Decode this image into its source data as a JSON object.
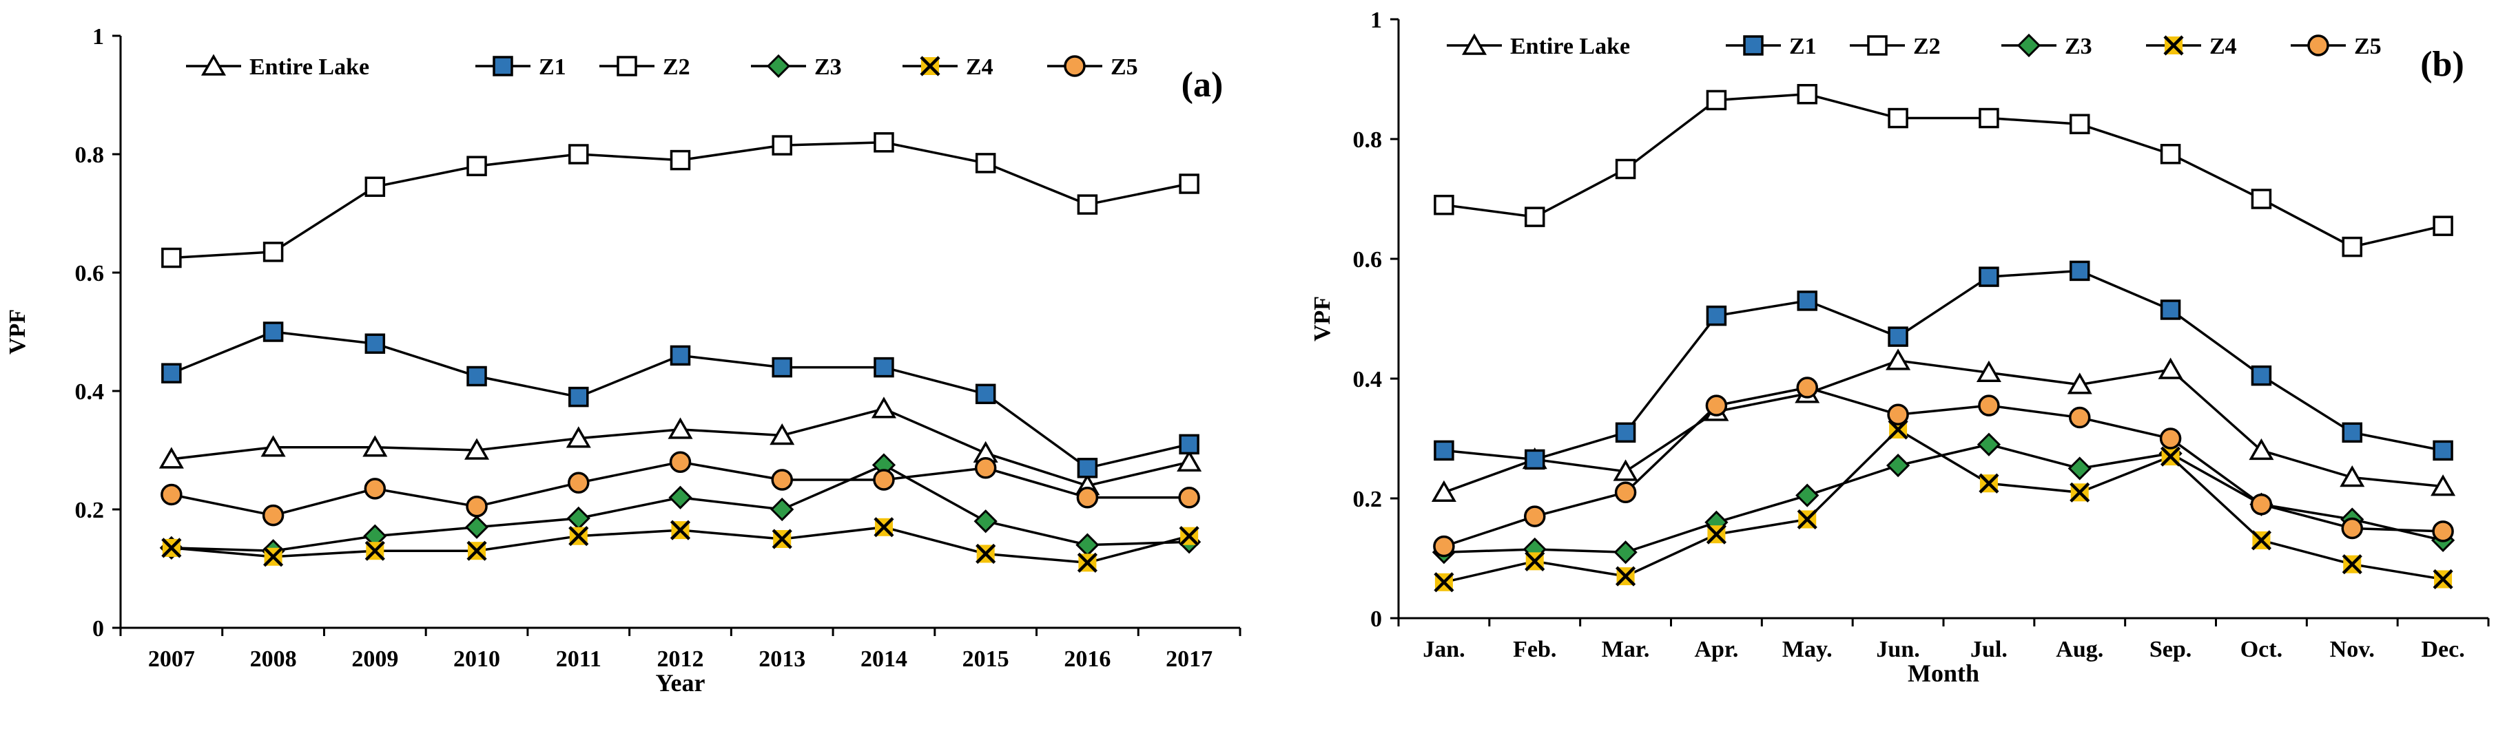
{
  "chart_data": [
    {
      "type": "line",
      "panel_label": "(a)",
      "xlabel": "Year",
      "ylabel": "VPF",
      "ylim": [
        0,
        1
      ],
      "yticks": [
        "0",
        "0.2",
        "0.4",
        "0.6",
        "0.8",
        "1"
      ],
      "categories": [
        "2007",
        "2008",
        "2009",
        "2010",
        "2011",
        "2012",
        "2013",
        "2014",
        "2015",
        "2016",
        "2017"
      ],
      "legend_position": "top",
      "series": [
        {
          "name": "Entire Lake",
          "marker": "triangle",
          "values": [
            0.285,
            0.305,
            0.305,
            0.3,
            0.32,
            0.335,
            0.325,
            0.37,
            0.295,
            0.24,
            0.28
          ]
        },
        {
          "name": "Z1",
          "marker": "square-filled",
          "values": [
            0.43,
            0.5,
            0.48,
            0.425,
            0.39,
            0.46,
            0.44,
            0.44,
            0.395,
            0.27,
            0.31
          ]
        },
        {
          "name": "Z2",
          "marker": "square-open",
          "values": [
            0.625,
            0.635,
            0.745,
            0.78,
            0.8,
            0.79,
            0.815,
            0.82,
            0.785,
            0.715,
            0.75
          ]
        },
        {
          "name": "Z3",
          "marker": "diamond",
          "values": [
            0.135,
            0.13,
            0.155,
            0.17,
            0.185,
            0.22,
            0.2,
            0.275,
            0.18,
            0.14,
            0.145
          ]
        },
        {
          "name": "Z4",
          "marker": "x-square",
          "values": [
            0.135,
            0.12,
            0.13,
            0.13,
            0.155,
            0.165,
            0.15,
            0.17,
            0.125,
            0.11,
            0.155
          ]
        },
        {
          "name": "Z5",
          "marker": "circle",
          "values": [
            0.225,
            0.19,
            0.235,
            0.205,
            0.245,
            0.28,
            0.25,
            0.25,
            0.27,
            0.22,
            0.22
          ]
        }
      ]
    },
    {
      "type": "line",
      "panel_label": "(b)",
      "xlabel": "Month",
      "ylabel": "VPF",
      "ylim": [
        0,
        1
      ],
      "yticks": [
        "0",
        "0.2",
        "0.4",
        "0.6",
        "0.8",
        "1"
      ],
      "categories": [
        "Jan.",
        "Feb.",
        "Mar.",
        "Apr.",
        "May.",
        "Jun.",
        "Jul.",
        "Aug.",
        "Sep.",
        "Oct.",
        "Nov.",
        "Dec."
      ],
      "legend_position": "top",
      "series": [
        {
          "name": "Entire Lake",
          "marker": "triangle",
          "values": [
            0.21,
            0.265,
            0.245,
            0.345,
            0.375,
            0.43,
            0.41,
            0.39,
            0.415,
            0.28,
            0.235,
            0.22
          ]
        },
        {
          "name": "Z1",
          "marker": "square-filled",
          "values": [
            0.28,
            0.265,
            0.31,
            0.505,
            0.53,
            0.47,
            0.57,
            0.58,
            0.515,
            0.405,
            0.31,
            0.28
          ]
        },
        {
          "name": "Z2",
          "marker": "square-open",
          "values": [
            0.69,
            0.67,
            0.75,
            0.865,
            0.875,
            0.835,
            0.835,
            0.825,
            0.775,
            0.7,
            0.62,
            0.655
          ]
        },
        {
          "name": "Z3",
          "marker": "diamond",
          "values": [
            0.11,
            0.115,
            0.11,
            0.16,
            0.205,
            0.255,
            0.29,
            0.25,
            0.275,
            0.19,
            0.165,
            0.13
          ]
        },
        {
          "name": "Z4",
          "marker": "x-square",
          "values": [
            0.06,
            0.095,
            0.07,
            0.14,
            0.165,
            0.315,
            0.225,
            0.21,
            0.27,
            0.13,
            0.09,
            0.065
          ]
        },
        {
          "name": "Z5",
          "marker": "circle",
          "values": [
            0.12,
            0.17,
            0.21,
            0.355,
            0.385,
            0.34,
            0.355,
            0.335,
            0.3,
            0.19,
            0.15,
            0.145
          ]
        }
      ]
    }
  ],
  "styles": {
    "line_color": "#000000",
    "z1_fill": "#2e75b6",
    "z3_fill": "#2e9a46",
    "z4_fill": "#f5c20a",
    "z5_fill": "#f4a04a",
    "open_fill": "#ffffff"
  }
}
